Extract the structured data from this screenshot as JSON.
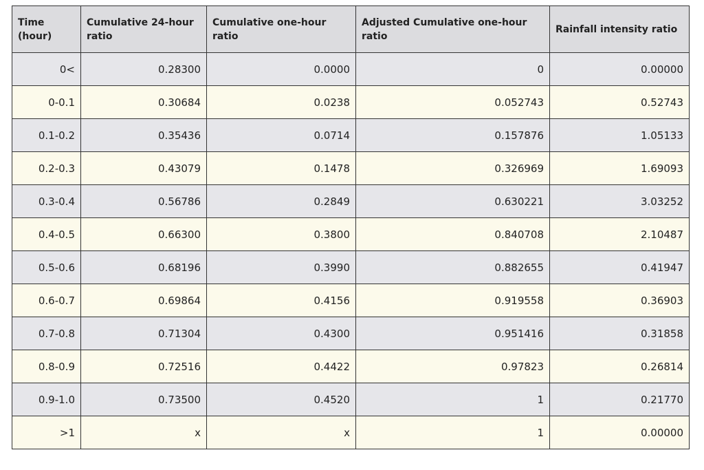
{
  "table": {
    "header": [
      "Time (hour)",
      "Cumulative 24-hour ratio",
      "Cumulative one-hour ratio",
      "Adjusted Cumulative one-hour ratio",
      "Rainfall intensity ratio"
    ],
    "rows": [
      [
        "0<",
        "0.28300",
        "0.0000",
        "0",
        "0.00000"
      ],
      [
        "0-0.1",
        "0.30684",
        "0.0238",
        "0.052743",
        "0.52743"
      ],
      [
        "0.1-0.2",
        "0.35436",
        "0.0714",
        "0.157876",
        "1.05133"
      ],
      [
        "0.2-0.3",
        "0.43079",
        "0.1478",
        "0.326969",
        "1.69093"
      ],
      [
        "0.3-0.4",
        "0.56786",
        "0.2849",
        "0.630221",
        "3.03252"
      ],
      [
        "0.4-0.5",
        "0.66300",
        "0.3800",
        "0.840708",
        "2.10487"
      ],
      [
        "0.5-0.6",
        "0.68196",
        "0.3990",
        "0.882655",
        "0.41947"
      ],
      [
        "0.6-0.7",
        "0.69864",
        "0.4156",
        "0.919558",
        "0.36903"
      ],
      [
        "0.7-0.8",
        "0.71304",
        "0.4300",
        "0.951416",
        "0.31858"
      ],
      [
        "0.8-0.9",
        "0.72516",
        "0.4422",
        "0.97823",
        "0.26814"
      ],
      [
        "0.9-1.0",
        "0.73500",
        "0.4520",
        "1",
        "0.21770"
      ],
      [
        ">1",
        "x",
        "x",
        "1",
        "0.00000"
      ]
    ]
  }
}
